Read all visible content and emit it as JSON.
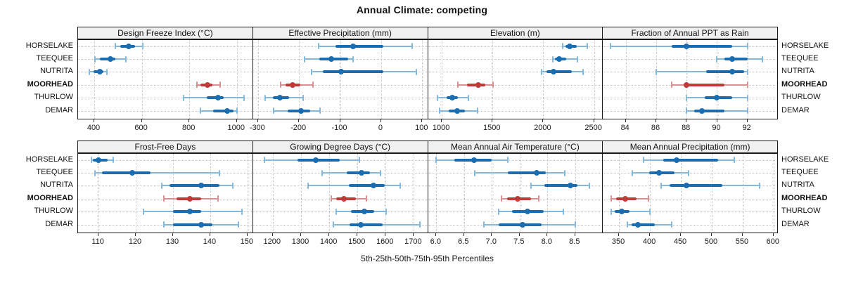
{
  "title": "Annual Climate: competing",
  "caption": "5th-25th-50th-75th-95th Percentiles",
  "row_labels": [
    "HORSELAKE",
    "TEEQUEE",
    "NUTRITA",
    "MOORHEAD",
    "THURLOW",
    "DEMAR"
  ],
  "highlight_row": "MOORHEAD",
  "colors": {
    "series": "#1b6db0",
    "series_light": "#85b9dc",
    "highlight": "#c13a3a",
    "highlight_light": "#d99090",
    "strip_bg": "#f0f0f0",
    "grid": "#c4c4c4",
    "border": "#1a1a1a"
  },
  "chart_data": {
    "type": "dotplot-interval",
    "percentile_order": [
      "5th",
      "25th",
      "50th",
      "75th",
      "95th"
    ],
    "legend_position": "none",
    "grid": "dotted",
    "panels": [
      {
        "title": "Design Freeze Index (°C)",
        "row": 0,
        "col": 0,
        "xlim": [
          332,
          1068
        ],
        "ticks": [
          400,
          600,
          800,
          1000
        ],
        "tick_labels": [
          "400",
          "600",
          "800",
          "1000"
        ],
        "series": [
          {
            "name": "HORSELAKE",
            "percentiles": [
              490,
              508,
              545,
              572,
              605
            ]
          },
          {
            "name": "TEEQUEE",
            "percentiles": [
              403,
              424,
              468,
              489,
              533
            ]
          },
          {
            "name": "NUTRITA",
            "percentiles": [
              378,
              397,
              423,
              437,
              453
            ]
          },
          {
            "name": "MOORHEAD",
            "percentiles": [
              833,
              848,
              876,
              898,
              931
            ]
          },
          {
            "name": "THURLOW",
            "percentiles": [
              775,
              872,
              921,
              943,
              1030
            ]
          },
          {
            "name": "DEMAR",
            "percentiles": [
              846,
              900,
              958,
              985,
              1002
            ]
          }
        ]
      },
      {
        "title": "Effective Precipitation (mm)",
        "row": 0,
        "col": 1,
        "xlim": [
          -312,
          114
        ],
        "ticks": [
          -300,
          -200,
          -100,
          0,
          100
        ],
        "tick_labels": [
          "-300",
          "-200",
          "-100",
          "0",
          "100"
        ],
        "series": [
          {
            "name": "HORSELAKE",
            "percentiles": [
              -152,
              -111,
              -69,
              6,
              76
            ]
          },
          {
            "name": "TEEQUEE",
            "percentiles": [
              -187,
              -150,
              -121,
              -80,
              -68
            ]
          },
          {
            "name": "NUTRITA",
            "percentiles": [
              -170,
              -142,
              -97,
              6,
              85
            ]
          },
          {
            "name": "MOORHEAD",
            "percentiles": [
              -245,
              -233,
              -216,
              -196,
              -166
            ]
          },
          {
            "name": "THURLOW",
            "percentiles": [
              -283,
              -264,
              -246,
              -224,
              -190
            ]
          },
          {
            "name": "DEMAR",
            "percentiles": [
              -262,
              -227,
              -195,
              -173,
              -149
            ]
          }
        ]
      },
      {
        "title": "Elevation (m)",
        "row": 0,
        "col": 2,
        "xlim": [
          864,
          2588
        ],
        "ticks": [
          1000,
          1500,
          2000,
          2500
        ],
        "tick_labels": [
          "1000",
          "1500",
          "2000",
          "2500"
        ],
        "series": [
          {
            "name": "HORSELAKE",
            "percentiles": [
              2193,
              2216,
              2257,
              2330,
              2436
            ]
          },
          {
            "name": "TEEQUEE",
            "percentiles": [
              2095,
              2114,
              2155,
              2227,
              2336
            ]
          },
          {
            "name": "NUTRITA",
            "percentiles": [
              1984,
              2034,
              2098,
              2284,
              2391
            ]
          },
          {
            "name": "MOORHEAD",
            "percentiles": [
              1159,
              1250,
              1359,
              1432,
              1505
            ]
          },
          {
            "name": "THURLOW",
            "percentiles": [
              959,
              1045,
              1102,
              1159,
              1261
            ]
          },
          {
            "name": "DEMAR",
            "percentiles": [
              977,
              1068,
              1148,
              1227,
              1352
            ]
          }
        ]
      },
      {
        "title": "Fraction of Annual PPT as Rain",
        "row": 0,
        "col": 3,
        "xlim": [
          82.5,
          94
        ],
        "ticks": [
          84,
          86,
          88,
          90,
          92
        ],
        "tick_labels": [
          "84",
          "86",
          "88",
          "90",
          "92"
        ],
        "series": [
          {
            "name": "HORSELAKE",
            "percentiles": [
              83,
              87,
              88,
              91,
              92
            ]
          },
          {
            "name": "TEEQUEE",
            "percentiles": [
              90,
              90.5,
              91,
              92,
              93
            ]
          },
          {
            "name": "NUTRITA",
            "percentiles": [
              86,
              89.3,
              91,
              91.8,
              92
            ]
          },
          {
            "name": "MOORHEAD",
            "percentiles": [
              87,
              87.9,
              88,
              90.5,
              92
            ]
          },
          {
            "name": "THURLOW",
            "percentiles": [
              88,
              89.2,
              90,
              91,
              92
            ]
          },
          {
            "name": "DEMAR",
            "percentiles": [
              88,
              88.5,
              89,
              90.5,
              92
            ]
          }
        ]
      },
      {
        "title": "Frost-Free Days",
        "row": 1,
        "col": 0,
        "xlim": [
          104.5,
          151.5
        ],
        "ticks": [
          110,
          120,
          130,
          140,
          150
        ],
        "tick_labels": [
          "110",
          "120",
          "130",
          "140",
          "150"
        ],
        "series": [
          {
            "name": "HORSELAKE",
            "percentiles": [
              108,
              108.5,
              110,
              112.5,
              114
            ]
          },
          {
            "name": "TEEQUEE",
            "percentiles": [
              109,
              111,
              119,
              124,
              142.5
            ]
          },
          {
            "name": "NUTRITA",
            "percentiles": [
              127,
              129,
              137.5,
              142.5,
              146
            ]
          },
          {
            "name": "MOORHEAD",
            "percentiles": [
              127.5,
              131,
              134.5,
              137.5,
              142
            ]
          },
          {
            "name": "THURLOW",
            "percentiles": [
              122,
              130,
              134.5,
              137.5,
              148.5
            ]
          },
          {
            "name": "DEMAR",
            "percentiles": [
              127.5,
              130,
              137.5,
              140.5,
              147.5
            ]
          }
        ]
      },
      {
        "title": "Growing Degree Days (°C)",
        "row": 1,
        "col": 1,
        "xlim": [
          1130,
          1750
        ],
        "ticks": [
          1200,
          1300,
          1400,
          1500,
          1600,
          1700
        ],
        "tick_labels": [
          "1200",
          "1300",
          "1400",
          "1500",
          "1600",
          "1700"
        ],
        "series": [
          {
            "name": "HORSELAKE",
            "percentiles": [
              1171,
              1287,
              1353,
              1436,
              1506
            ]
          },
          {
            "name": "TEEQUEE",
            "percentiles": [
              1374,
              1461,
              1515,
              1544,
              1581
            ]
          },
          {
            "name": "NUTRITA",
            "percentiles": [
              1324,
              1469,
              1556,
              1597,
              1651
            ]
          },
          {
            "name": "MOORHEAD",
            "percentiles": [
              1407,
              1424,
              1453,
              1494,
              1531
            ]
          },
          {
            "name": "THURLOW",
            "percentiles": [
              1424,
              1477,
              1525,
              1560,
              1601
            ]
          },
          {
            "name": "DEMAR",
            "percentiles": [
              1415,
              1473,
              1512,
              1589,
              1721
            ]
          }
        ]
      },
      {
        "title": "Mean Annual Air Temperature (°C)",
        "row": 1,
        "col": 2,
        "xlim": [
          5.85,
          9.0
        ],
        "ticks": [
          6.0,
          6.5,
          7.0,
          7.5,
          8.0,
          8.5
        ],
        "tick_labels": [
          "6.0",
          "6.5",
          "7.0",
          "7.5",
          "8.0",
          "8.5"
        ],
        "series": [
          {
            "name": "HORSELAKE",
            "percentiles": [
              6.0,
              6.32,
              6.68,
              7.0,
              7.29
            ]
          },
          {
            "name": "TEEQUEE",
            "percentiles": [
              6.69,
              7.29,
              7.81,
              7.97,
              8.31
            ]
          },
          {
            "name": "NUTRITA",
            "percentiles": [
              7.7,
              7.95,
              8.41,
              8.54,
              8.76
            ]
          },
          {
            "name": "MOORHEAD",
            "percentiles": [
              7.17,
              7.27,
              7.46,
              7.7,
              7.84
            ]
          },
          {
            "name": "THURLOW",
            "percentiles": [
              7.12,
              7.36,
              7.64,
              7.93,
              8.29
            ]
          },
          {
            "name": "DEMAR",
            "percentiles": [
              6.85,
              7.12,
              7.55,
              7.9,
              8.5
            ]
          }
        ]
      },
      {
        "title": "Mean Annual Precipitation (mm)",
        "row": 1,
        "col": 3,
        "xlim": [
          324,
          607
        ],
        "ticks": [
          350,
          400,
          450,
          500,
          550,
          600
        ],
        "tick_labels": [
          "350",
          "400",
          "450",
          "500",
          "550",
          "600"
        ],
        "series": [
          {
            "name": "HORSELAKE",
            "percentiles": [
              390,
              421,
              443,
              510,
              536
            ]
          },
          {
            "name": "TEEQUEE",
            "percentiles": [
              372,
              399,
              415,
              440,
              462
            ]
          },
          {
            "name": "NUTRITA",
            "percentiles": [
              418,
              432,
              459,
              517,
              577
            ]
          },
          {
            "name": "MOORHEAD",
            "percentiles": [
              337,
              345,
              360,
              378,
              398
            ]
          },
          {
            "name": "THURLOW",
            "percentiles": [
              337,
              343,
              354,
              367,
              400
            ]
          },
          {
            "name": "DEMAR",
            "percentiles": [
              363,
              370,
              381,
              408,
              435
            ]
          }
        ]
      }
    ]
  }
}
